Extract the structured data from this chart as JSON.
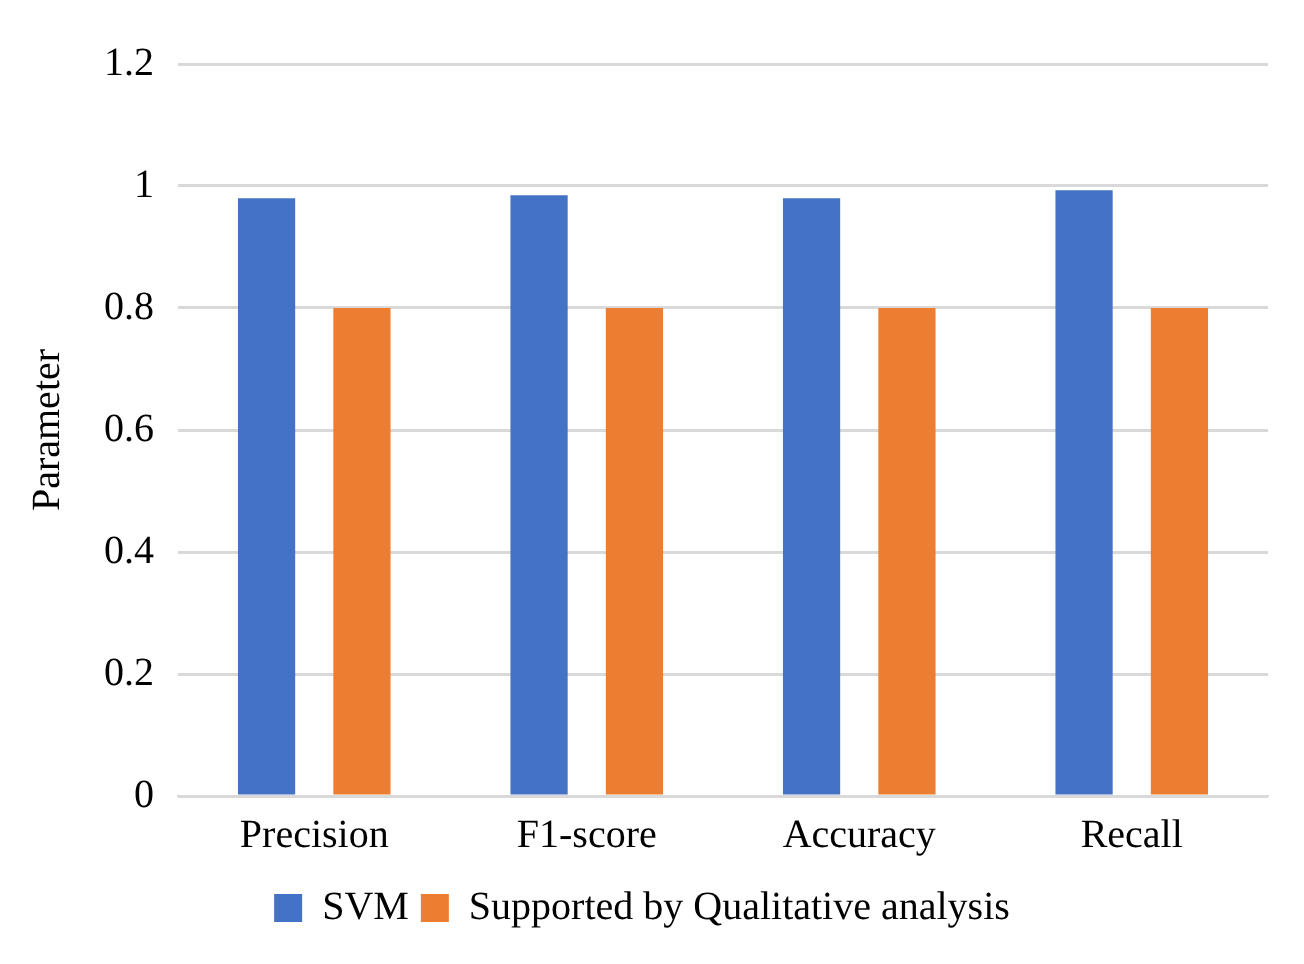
{
  "chart_data": {
    "type": "bar",
    "ylabel": "Parameter",
    "categories": [
      "Precision",
      "F1-score",
      "Accuracy",
      "Recall"
    ],
    "series": [
      {
        "name": "SVM",
        "color": "#4472c4",
        "values": [
          0.98,
          0.985,
          0.98,
          0.993
        ]
      },
      {
        "name": "Supported by Qualitative analysis",
        "color": "#ed7d31",
        "values": [
          0.8,
          0.8,
          0.8,
          0.8
        ]
      }
    ],
    "ylim": [
      0,
      1.2
    ],
    "yticks": [
      0,
      0.2,
      0.4,
      0.6,
      0.8,
      1,
      1.2
    ],
    "grid": "y",
    "legend": "bottom"
  }
}
